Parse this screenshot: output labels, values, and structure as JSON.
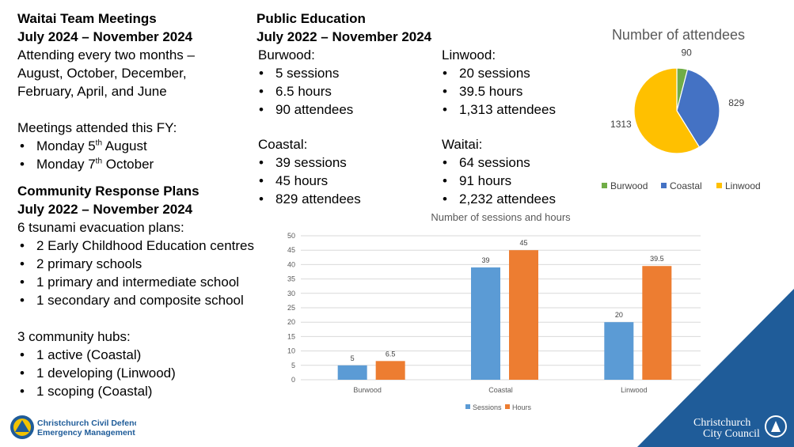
{
  "team_meetings": {
    "title": "Waitai Team Meetings",
    "period": "July 2024 – November 2024",
    "desc": [
      "Attending every two months –",
      "August, October, December,",
      "February, April, and June"
    ],
    "attended_label": "Meetings attended this FY:",
    "attended": [
      {
        "pre": "Monday 5",
        "sup": "th",
        "post": " August"
      },
      {
        "pre": "Monday 7",
        "sup": "th",
        "post": " October"
      }
    ]
  },
  "response_plans": {
    "title": "Community Response Plans",
    "period": "July 2022 – November 2024",
    "plans_label": "6 tsunami evacuation plans:",
    "plans": [
      "2 Early Childhood Education centres",
      "2 primary schools",
      "1 primary and intermediate school",
      "1 secondary and composite school"
    ],
    "hubs_label": "3 community hubs:",
    "hubs": [
      "1 active (Coastal)",
      "1 developing (Linwood)",
      "1 scoping (Coastal)"
    ]
  },
  "public_education": {
    "title": "Public Education",
    "period": "July 2022 – November 2024",
    "areas": [
      {
        "name": "Burwood:",
        "items": [
          "5 sessions",
          "6.5 hours",
          "90 attendees"
        ]
      },
      {
        "name": "Coastal:",
        "items": [
          "39 sessions",
          "45 hours",
          "829 attendees"
        ]
      },
      {
        "name": "Linwood:",
        "items": [
          "20 sessions",
          "39.5 hours",
          "1,313 attendees"
        ]
      },
      {
        "name": "Waitai:",
        "items": [
          "64 sessions",
          "91 hours",
          "2,232 attendees"
        ]
      }
    ]
  },
  "logos": {
    "cdem_line1": "Christchurch Civil Defence",
    "cdem_line2": "Emergency Management",
    "ccc_line1": "Christchurch",
    "ccc_line2": "City Council"
  },
  "colors": {
    "burwood": "#70ad47",
    "coastal": "#4472c4",
    "linwood": "#ffc000",
    "sessions": "#5b9bd5",
    "hours": "#ed7d31",
    "triangle": "#1f5c99"
  },
  "chart_data": [
    {
      "type": "pie",
      "title": "Number of attendees",
      "categories": [
        "Burwood",
        "Coastal",
        "Linwood"
      ],
      "values": [
        90,
        829,
        1313
      ],
      "legend": "bottom"
    },
    {
      "type": "bar",
      "title": "Number of sessions and hours",
      "categories": [
        "Burwood",
        "Coastal",
        "Linwood"
      ],
      "series": [
        {
          "name": "Sessions",
          "values": [
            5,
            39,
            20
          ]
        },
        {
          "name": "Hours",
          "values": [
            6.5,
            45,
            39.5
          ]
        }
      ],
      "ylim": [
        0,
        50
      ],
      "yticks": [
        0,
        5,
        10,
        15,
        20,
        25,
        30,
        35,
        40,
        45,
        50
      ],
      "grid": true,
      "legend": "bottom"
    }
  ]
}
